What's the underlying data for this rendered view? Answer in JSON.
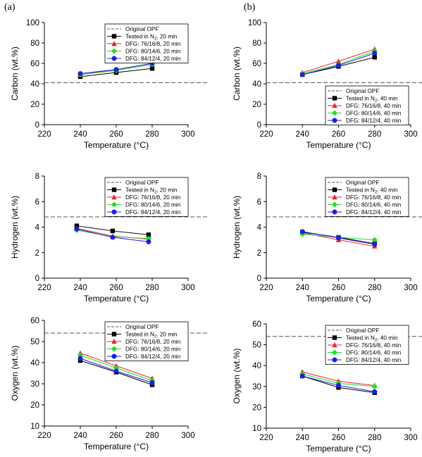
{
  "panel_labels": [
    "(a)",
    "(b)"
  ],
  "legend_texts": {
    "original": "Original OPF",
    "n2_prefix": "Tested in N",
    "n2_sub": "2",
    "n2_20": ", 20 min",
    "n2_40": ", 40 min"
  },
  "colors": {
    "axis": "#000000",
    "original": "#555555",
    "n2": "#000000",
    "dfg76": "#e8272b",
    "dfg80": "#1fdc2b",
    "dfg84": "#1f1fe0"
  },
  "chart_data": [
    {
      "type": "line",
      "panel": "a",
      "ylabel": "Carbon (wt.%)",
      "xlabel": "Temperature (°C)",
      "xlim": [
        220,
        300
      ],
      "ylim": [
        0,
        100
      ],
      "xticks": [
        220,
        240,
        260,
        280,
        300
      ],
      "yticks": [
        0,
        20,
        40,
        60,
        80,
        100
      ],
      "original": 41,
      "legend_position": "top",
      "x": [
        240,
        260,
        280
      ],
      "series": [
        {
          "name": "Tested in N2, 20 min",
          "key": "n2",
          "marker": "square",
          "values": [
            47,
            51,
            55
          ]
        },
        {
          "name": "DFG: 76/16/8, 20 min",
          "key": "dfg76",
          "marker": "triangle",
          "values": [
            49,
            54,
            60
          ]
        },
        {
          "name": "DFG: 80/14/6, 20 min",
          "key": "dfg80",
          "marker": "diamond",
          "values": [
            49,
            53,
            59
          ]
        },
        {
          "name": "DFG: 84/12/4, 20 min",
          "key": "dfg84",
          "marker": "circle",
          "values": [
            50,
            54,
            60
          ]
        }
      ]
    },
    {
      "type": "line",
      "panel": "b",
      "ylabel": "Carbon (wt.%)",
      "xlabel": "Temperature (°C)",
      "xlim": [
        220,
        300
      ],
      "ylim": [
        0,
        100
      ],
      "xticks": [
        220,
        240,
        260,
        280,
        300
      ],
      "yticks": [
        0,
        20,
        40,
        60,
        80,
        100
      ],
      "original": 41,
      "legend_position": "bottom",
      "x": [
        240,
        260,
        280
      ],
      "series": [
        {
          "name": "Tested in N2, 40 min",
          "key": "n2",
          "marker": "square",
          "values": [
            49,
            57,
            66
          ]
        },
        {
          "name": "DFG: 76/16/8, 40 min",
          "key": "dfg76",
          "marker": "triangle",
          "values": [
            51,
            62,
            74
          ]
        },
        {
          "name": "DFG: 80/14/6, 40 min",
          "key": "dfg80",
          "marker": "diamond",
          "values": [
            50,
            59,
            72
          ]
        },
        {
          "name": "DFG: 84/12/4, 40 min",
          "key": "dfg84",
          "marker": "circle",
          "values": [
            49,
            58,
            70
          ]
        }
      ]
    },
    {
      "type": "line",
      "panel": "a",
      "ylabel": "Hydrogen (wt.%)",
      "xlabel": "Temperature (°C)",
      "xlim": [
        220,
        300
      ],
      "ylim": [
        0,
        8
      ],
      "xticks": [
        220,
        240,
        260,
        280,
        300
      ],
      "yticks": [
        0,
        2,
        4,
        6,
        8
      ],
      "original": 4.8,
      "legend_position": "top",
      "x": [
        238,
        258,
        278
      ],
      "series": [
        {
          "name": "Tested in N2, 20 min",
          "key": "n2",
          "marker": "square",
          "values": [
            4.1,
            3.7,
            3.4
          ]
        },
        {
          "name": "DFG: 76/16/8, 20 min",
          "key": "dfg76",
          "marker": "triangle",
          "values": [
            3.9,
            3.3,
            3.05
          ]
        },
        {
          "name": "DFG: 80/14/6, 20 min",
          "key": "dfg80",
          "marker": "diamond",
          "values": [
            3.75,
            3.25,
            3.1
          ]
        },
        {
          "name": "DFG: 84/12/4, 20 min",
          "key": "dfg84",
          "marker": "circle",
          "values": [
            3.85,
            3.2,
            2.85
          ]
        }
      ]
    },
    {
      "type": "line",
      "panel": "b",
      "ylabel": "Hydrogen (wt.%)",
      "xlabel": "Temperature (°C)",
      "xlim": [
        220,
        300
      ],
      "ylim": [
        0,
        8
      ],
      "xticks": [
        220,
        240,
        260,
        280,
        300
      ],
      "yticks": [
        0,
        2,
        4,
        6,
        8
      ],
      "original": 4.8,
      "legend_position": "top",
      "x": [
        240,
        260,
        280
      ],
      "series": [
        {
          "name": "Tested in N2, 40 min",
          "key": "n2",
          "marker": "square",
          "values": [
            3.6,
            3.2,
            2.7
          ]
        },
        {
          "name": "DFG: 76/16/8, 40 min",
          "key": "dfg76",
          "marker": "triangle",
          "values": [
            3.55,
            3.0,
            2.5
          ]
        },
        {
          "name": "DFG: 80/14/6, 40 min",
          "key": "dfg80",
          "marker": "diamond",
          "values": [
            3.45,
            3.2,
            3.0
          ]
        },
        {
          "name": "DFG: 84/12/4, 40 min",
          "key": "dfg84",
          "marker": "circle",
          "values": [
            3.65,
            3.15,
            2.65
          ]
        }
      ]
    },
    {
      "type": "line",
      "panel": "a",
      "ylabel": "Oxygen (wt.%)",
      "xlabel": "Temperature (°C)",
      "xlim": [
        220,
        300
      ],
      "ylim": [
        10,
        60
      ],
      "xticks": [
        220,
        240,
        260,
        280,
        300
      ],
      "yticks": [
        10,
        20,
        30,
        40,
        50,
        60
      ],
      "original": 54,
      "legend_position": "top",
      "x": [
        240,
        260,
        280
      ],
      "series": [
        {
          "name": "Tested in N2, 20 min",
          "key": "n2",
          "marker": "square",
          "values": [
            41,
            35.5,
            29.5
          ]
        },
        {
          "name": "DFG: 76/16/8, 20 min",
          "key": "dfg76",
          "marker": "triangle",
          "values": [
            44.5,
            38.5,
            32.5
          ]
        },
        {
          "name": "DFG: 80/14/6, 20 min",
          "key": "dfg80",
          "marker": "diamond",
          "values": [
            43.5,
            37.5,
            31.5
          ]
        },
        {
          "name": "DFG: 84/12/4, 20 min",
          "key": "dfg84",
          "marker": "circle",
          "values": [
            42,
            36,
            30.5
          ]
        }
      ]
    },
    {
      "type": "line",
      "panel": "b",
      "ylabel": "Oxygen (wt.%)",
      "xlabel": "Temperature (°C)",
      "xlim": [
        220,
        300
      ],
      "ylim": [
        10,
        60
      ],
      "xticks": [
        220,
        240,
        260,
        280,
        300
      ],
      "yticks": [
        10,
        20,
        30,
        40,
        50,
        60
      ],
      "original": 54,
      "legend_position": "top",
      "x": [
        240,
        260,
        280
      ],
      "series": [
        {
          "name": "Tested in N2, 40 min",
          "key": "n2",
          "marker": "square",
          "values": [
            35,
            29.5,
            27
          ]
        },
        {
          "name": "DFG: 76/16/8, 40 min",
          "key": "dfg76",
          "marker": "triangle",
          "values": [
            37,
            32.5,
            30.5
          ]
        },
        {
          "name": "DFG: 80/14/6, 40 min",
          "key": "dfg80",
          "marker": "diamond",
          "values": [
            36,
            31.5,
            30
          ]
        },
        {
          "name": "DFG: 84/12/4, 40 min",
          "key": "dfg84",
          "marker": "circle",
          "values": [
            35,
            30.5,
            27.5
          ]
        }
      ]
    }
  ]
}
